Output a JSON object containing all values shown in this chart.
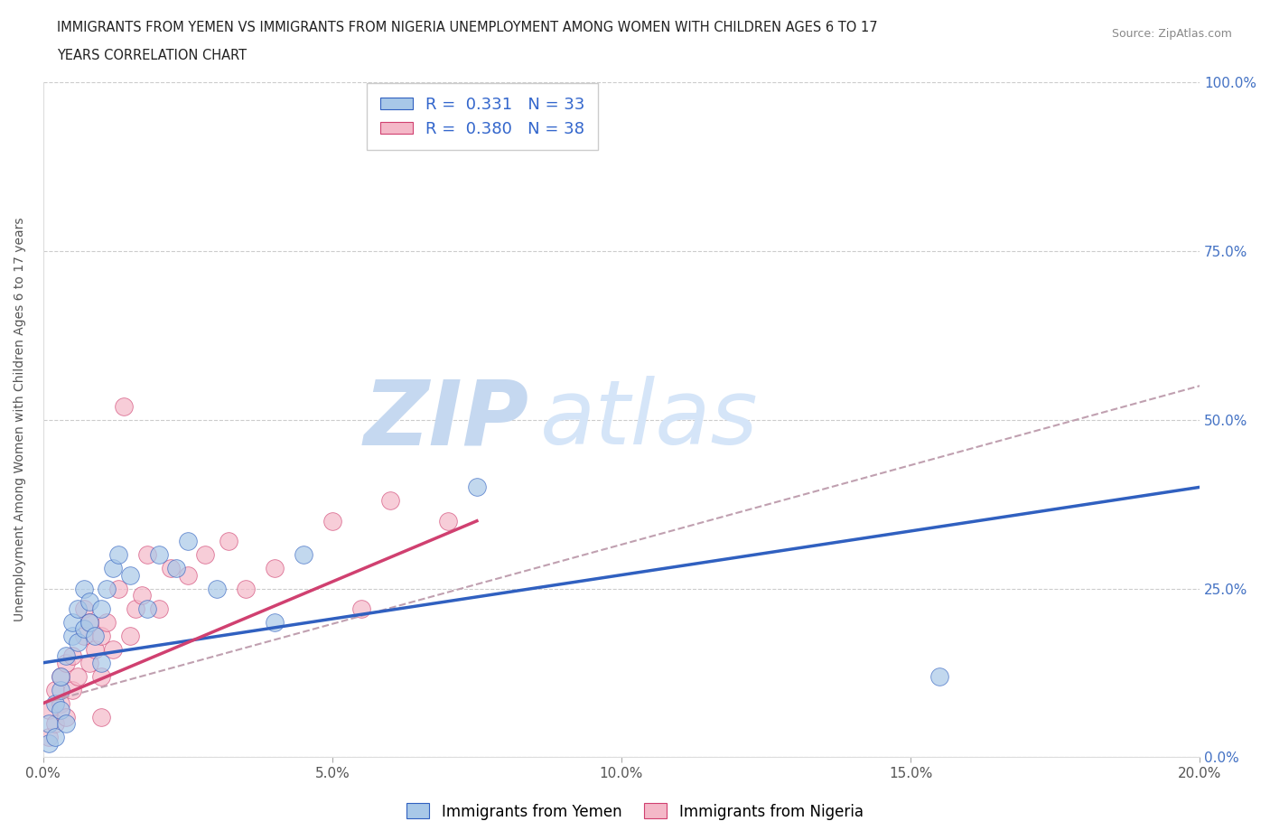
{
  "title_line1": "IMMIGRANTS FROM YEMEN VS IMMIGRANTS FROM NIGERIA UNEMPLOYMENT AMONG WOMEN WITH CHILDREN AGES 6 TO 17",
  "title_line2": "YEARS CORRELATION CHART",
  "source": "Source: ZipAtlas.com",
  "xlabel_ticks": [
    "0.0%",
    "5.0%",
    "10.0%",
    "15.0%",
    "20.0%"
  ],
  "xlabel_vals": [
    0.0,
    5.0,
    10.0,
    15.0,
    20.0
  ],
  "ylabel": "Unemployment Among Women with Children Ages 6 to 17 years",
  "ylabel_ticks": [
    "0.0%",
    "25.0%",
    "50.0%",
    "75.0%",
    "100.0%"
  ],
  "ylabel_vals": [
    0.0,
    25.0,
    50.0,
    75.0,
    100.0
  ],
  "xlim": [
    0,
    20
  ],
  "ylim": [
    0,
    100
  ],
  "legend_r_yemen": "R = 0.331",
  "legend_n_yemen": "N = 33",
  "legend_r_nigeria": "R = 0.380",
  "legend_n_nigeria": "N = 38",
  "color_yemen": "#a8c8e8",
  "color_nigeria": "#f4b8c8",
  "color_trend_yemen": "#3060c0",
  "color_trend_nigeria": "#d04070",
  "color_trend_nigeria_dashed": "#c0a0b0",
  "watermark_zip": "ZIP",
  "watermark_atlas": "atlas",
  "watermark_color_zip": "#c8d8f0",
  "watermark_color_atlas": "#c8d8f0",
  "yemen_x": [
    0.1,
    0.1,
    0.2,
    0.2,
    0.3,
    0.3,
    0.3,
    0.4,
    0.4,
    0.5,
    0.5,
    0.6,
    0.6,
    0.7,
    0.7,
    0.8,
    0.8,
    0.9,
    1.0,
    1.0,
    1.1,
    1.2,
    1.3,
    1.5,
    1.8,
    2.0,
    2.3,
    2.5,
    3.0,
    4.0,
    4.5,
    7.5,
    15.5
  ],
  "yemen_y": [
    2,
    5,
    3,
    8,
    7,
    10,
    12,
    5,
    15,
    18,
    20,
    17,
    22,
    19,
    25,
    20,
    23,
    18,
    22,
    14,
    25,
    28,
    30,
    27,
    22,
    30,
    28,
    32,
    25,
    20,
    30,
    40,
    12
  ],
  "nigeria_x": [
    0.1,
    0.1,
    0.2,
    0.2,
    0.3,
    0.3,
    0.4,
    0.4,
    0.5,
    0.5,
    0.6,
    0.7,
    0.7,
    0.8,
    0.8,
    0.9,
    1.0,
    1.0,
    1.1,
    1.2,
    1.3,
    1.4,
    1.5,
    1.6,
    1.7,
    1.8,
    2.0,
    2.2,
    2.5,
    2.8,
    3.2,
    3.5,
    4.0,
    5.0,
    5.5,
    6.0,
    7.0,
    1.0
  ],
  "nigeria_y": [
    3,
    7,
    5,
    10,
    8,
    12,
    6,
    14,
    10,
    15,
    12,
    18,
    22,
    14,
    20,
    16,
    12,
    18,
    20,
    16,
    25,
    52,
    18,
    22,
    24,
    30,
    22,
    28,
    27,
    30,
    32,
    25,
    28,
    35,
    22,
    38,
    35,
    6
  ],
  "yemen_trend_x0": 0,
  "yemen_trend_y0": 14,
  "yemen_trend_x1": 20,
  "yemen_trend_y1": 40,
  "nigeria_trend_solid_x0": 0,
  "nigeria_trend_solid_y0": 8,
  "nigeria_trend_solid_x1": 7.5,
  "nigeria_trend_solid_y1": 35,
  "nigeria_trend_dashed_x0": 0,
  "nigeria_trend_dashed_y0": 8,
  "nigeria_trend_dashed_x1": 20,
  "nigeria_trend_dashed_y1": 55
}
